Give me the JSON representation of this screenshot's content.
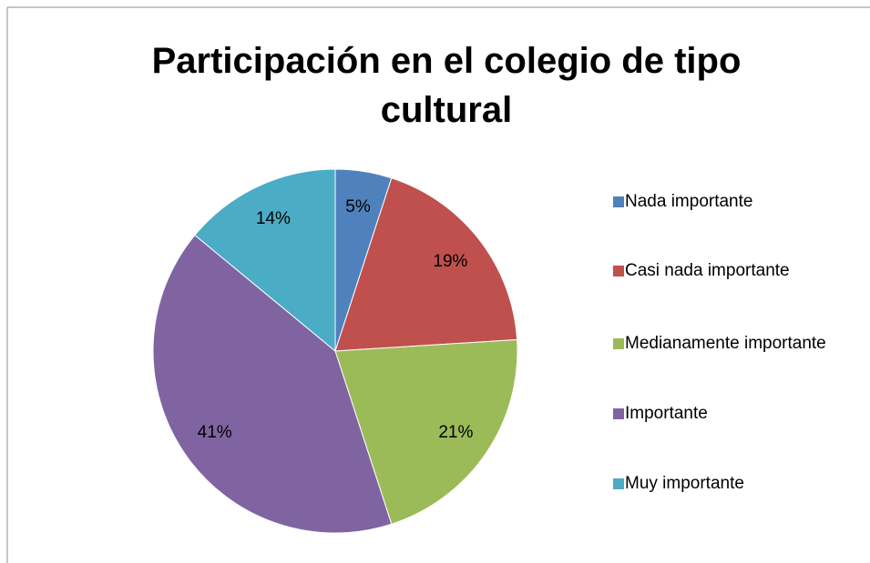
{
  "chart_data": {
    "type": "pie",
    "title": "Participación en el colegio de tipo cultural",
    "categories": [
      "Nada importante",
      "Casi nada importante",
      "Medianamente importante",
      "Importante",
      "Muy importante"
    ],
    "values": [
      5,
      19,
      21,
      41,
      14
    ],
    "value_labels": [
      "5%",
      "19%",
      "21%",
      "41%",
      "14%"
    ],
    "colors": [
      "#4f81bd",
      "#c0504d",
      "#9bbb59",
      "#8064a2",
      "#4bacc6"
    ],
    "legend": "right"
  }
}
